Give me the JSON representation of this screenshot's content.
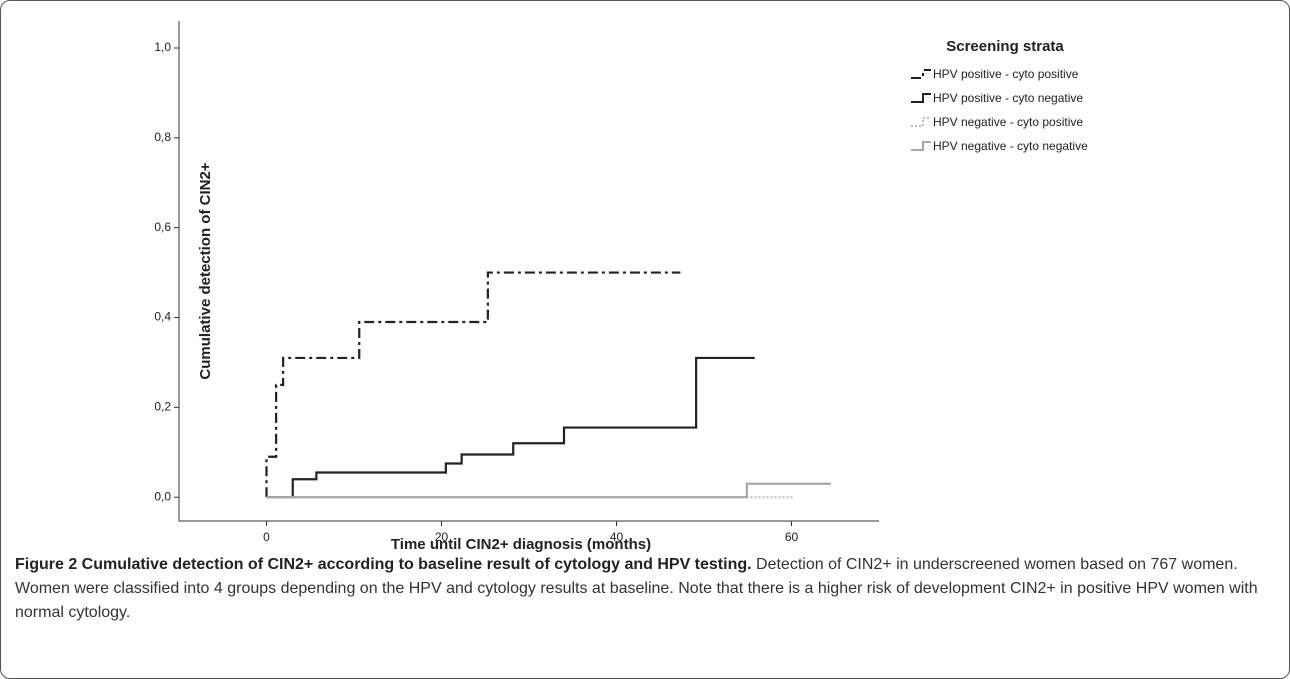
{
  "chart_data": {
    "type": "step",
    "xlabel": "Time until CIN2+ diagnosis (months)",
    "ylabel": "Cumulative detection of CIN2+",
    "legend_title": "Screening strata",
    "legend_position": "upper right",
    "xlim": [
      -10,
      70
    ],
    "xticks": [
      0,
      20,
      40,
      60
    ],
    "ylim": [
      -0.053,
      1.06
    ],
    "yticks": [
      {
        "value": 0,
        "label": "0,0"
      },
      {
        "value": 0.2,
        "label": "0,2"
      },
      {
        "value": 0.4,
        "label": "0,4"
      },
      {
        "value": 0.6,
        "label": "0,6"
      },
      {
        "value": 0.8,
        "label": "0,8"
      },
      {
        "value": 1.0,
        "label": "1,0"
      }
    ],
    "series": [
      {
        "name": "HPV positive - cyto positive",
        "color": "#222222",
        "line_style": "dashdot",
        "x": [
          0,
          0,
          1.1,
          1.9,
          10.6,
          25.3,
          47.3
        ],
        "values": [
          0,
          0.09,
          0.25,
          0.31,
          0.39,
          0.5,
          0.5
        ]
      },
      {
        "name": "HPV positive - cyto negative",
        "color": "#222222",
        "line_style": "solid",
        "x": [
          0,
          3,
          5.7,
          20.5,
          22.3,
          28.2,
          34,
          49.1,
          55.8
        ],
        "values": [
          0,
          0.04,
          0.055,
          0.075,
          0.095,
          0.12,
          0.155,
          0.31,
          0.31
        ]
      },
      {
        "name": "HPV negative - cyto positive",
        "color": "#bbbbbb",
        "line_style": "dotted",
        "x": [
          0,
          60.2
        ],
        "values": [
          0,
          0
        ]
      },
      {
        "name": "HPV negative - cyto negative",
        "color": "#a8a8a8",
        "line_style": "solid",
        "x": [
          0,
          54.9,
          64.5
        ],
        "values": [
          0,
          0.03,
          0.03
        ]
      }
    ]
  },
  "figure_caption": {
    "heading": "Figure 2 Cumulative detection of CIN2+ according to baseline result of cytology and HPV testing.",
    "text": "Detection of CIN2+ in underscreened women based on 767 women. Women were classified into 4 groups depending on the HPV and cytology results at baseline. Note that there is a higher risk of development CIN2+ in positive HPV women with normal cytology."
  }
}
